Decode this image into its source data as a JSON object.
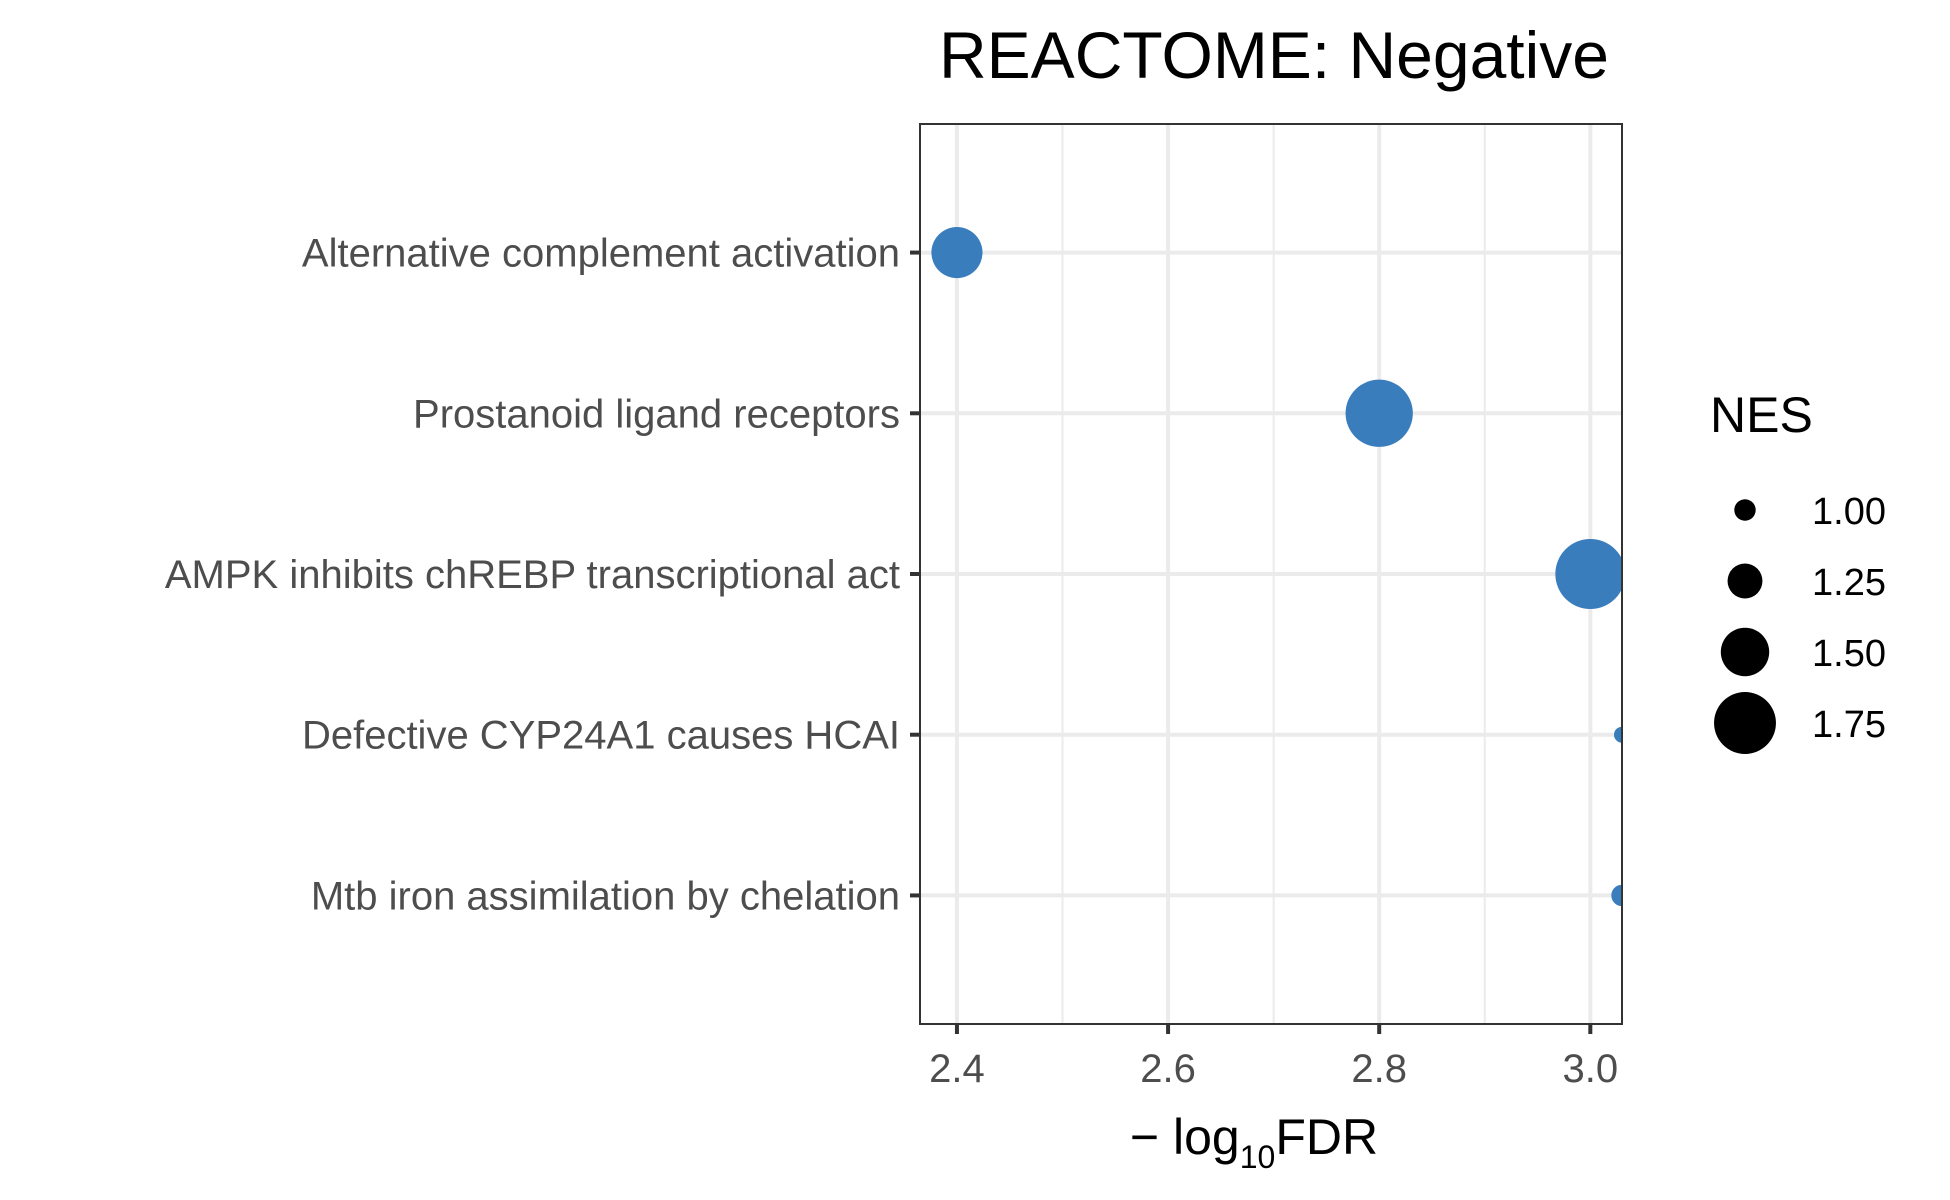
{
  "chart_data": {
    "type": "scatter",
    "title": "REACTOME: Negative",
    "xlabel": {
      "prefix": "− log",
      "subscript": "10",
      "suffix": "FDR"
    },
    "ylabel": "",
    "xlim": [
      2.365,
      3.03
    ],
    "x_ticks": [
      "2.4",
      "2.6",
      "2.8",
      "3.0"
    ],
    "x_tick_values": [
      2.4,
      2.6,
      2.8,
      3.0
    ],
    "categories": [
      "Alternative complement activation",
      "Prostanoid ligand receptors",
      "AMPK inhibits chREBP transcriptional act",
      "Defective CYP24A1 causes HCAI",
      "Mtb iron assimilation by chelation"
    ],
    "points": [
      {
        "category": "Alternative complement activation",
        "x": 2.4,
        "nes": 1.55
      },
      {
        "category": "Prostanoid ligand receptors",
        "x": 2.8,
        "nes": 1.85
      },
      {
        "category": "AMPK inhibits chREBP transcriptional act",
        "x": 3.0,
        "nes": 1.9
      },
      {
        "category": "Defective CYP24A1 causes HCAI",
        "x": 3.03,
        "nes": 0.9
      },
      {
        "category": "Mtb iron assimilation by chelation",
        "x": 3.03,
        "nes": 1.0
      }
    ],
    "point_color": "#3a7dbd",
    "grid": true,
    "legend": {
      "title": "NES",
      "placement": "right",
      "entries": [
        {
          "label": "1.00",
          "value": 1.0
        },
        {
          "label": "1.25",
          "value": 1.25
        },
        {
          "label": "1.50",
          "value": 1.5
        },
        {
          "label": "1.75",
          "value": 1.75
        }
      ]
    }
  }
}
